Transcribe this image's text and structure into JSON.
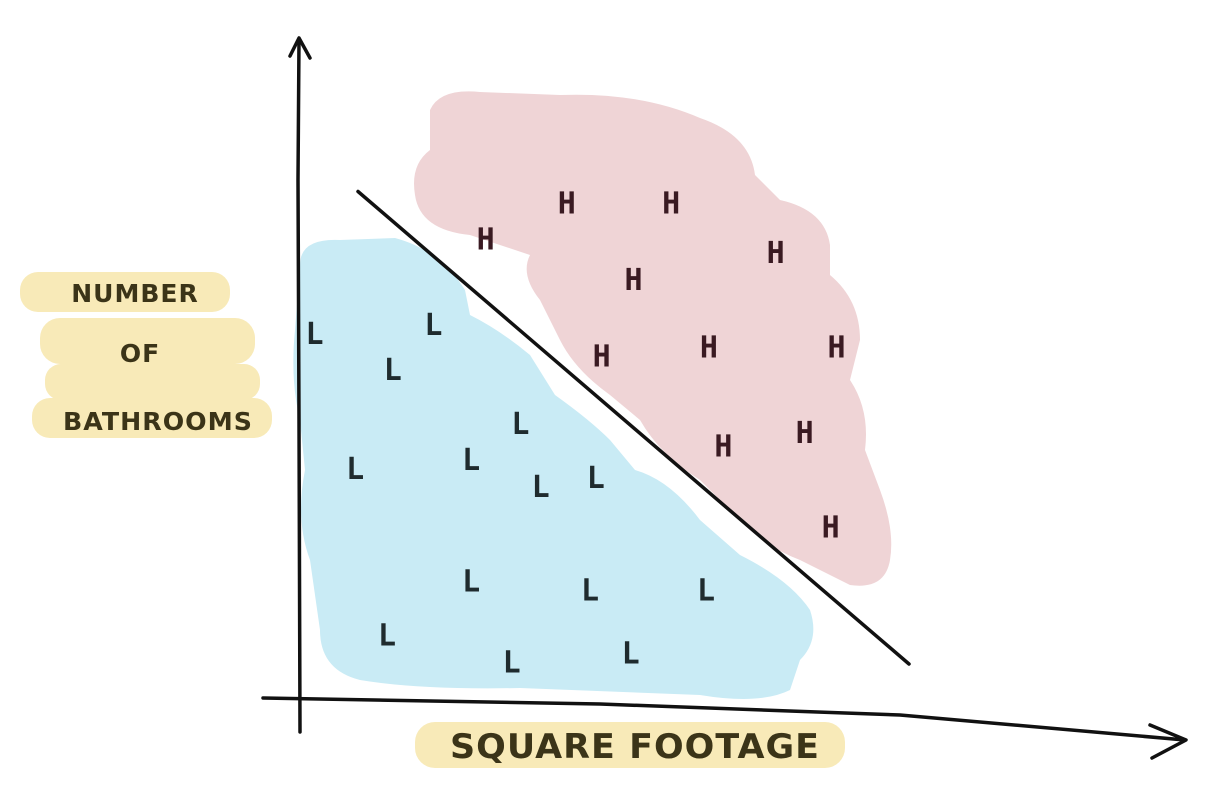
{
  "diagram": {
    "x_axis_label": "SQUARE FOOTAGE",
    "y_axis_label_lines": [
      "NUMBER",
      "OF",
      "BATHROOMS"
    ],
    "colors": {
      "low_region": "#c9ebf5",
      "high_region": "#efd4d6",
      "label_highlight": "#f8eab8",
      "ink": "#111111"
    },
    "low_class": {
      "marker": "L",
      "points": [
        {
          "x": 0.5,
          "y": 8.1
        },
        {
          "x": 4.6,
          "y": 8.3
        },
        {
          "x": 3.2,
          "y": 7.3
        },
        {
          "x": 7.6,
          "y": 6.1
        },
        {
          "x": 1.9,
          "y": 5.1
        },
        {
          "x": 5.9,
          "y": 5.3
        },
        {
          "x": 8.3,
          "y": 4.7
        },
        {
          "x": 10.2,
          "y": 4.9
        },
        {
          "x": 5.9,
          "y": 2.6
        },
        {
          "x": 10.0,
          "y": 2.4
        },
        {
          "x": 14.0,
          "y": 2.4
        },
        {
          "x": 3.0,
          "y": 1.4
        },
        {
          "x": 7.3,
          "y": 0.8
        },
        {
          "x": 11.4,
          "y": 1.0
        }
      ]
    },
    "high_class": {
      "marker": "H",
      "points": [
        {
          "x": 9.2,
          "y": 11.0
        },
        {
          "x": 12.8,
          "y": 11.0
        },
        {
          "x": 6.4,
          "y": 10.2
        },
        {
          "x": 16.4,
          "y": 9.9
        },
        {
          "x": 11.5,
          "y": 9.3
        },
        {
          "x": 10.4,
          "y": 7.6
        },
        {
          "x": 14.1,
          "y": 7.8
        },
        {
          "x": 18.5,
          "y": 7.8
        },
        {
          "x": 14.6,
          "y": 5.6
        },
        {
          "x": 17.4,
          "y": 5.9
        },
        {
          "x": 18.3,
          "y": 3.8
        }
      ]
    },
    "boundary": {
      "from": {
        "x": 2.0,
        "y": 11.3
      },
      "to": {
        "x": 21.0,
        "y": 0.8
      }
    }
  }
}
